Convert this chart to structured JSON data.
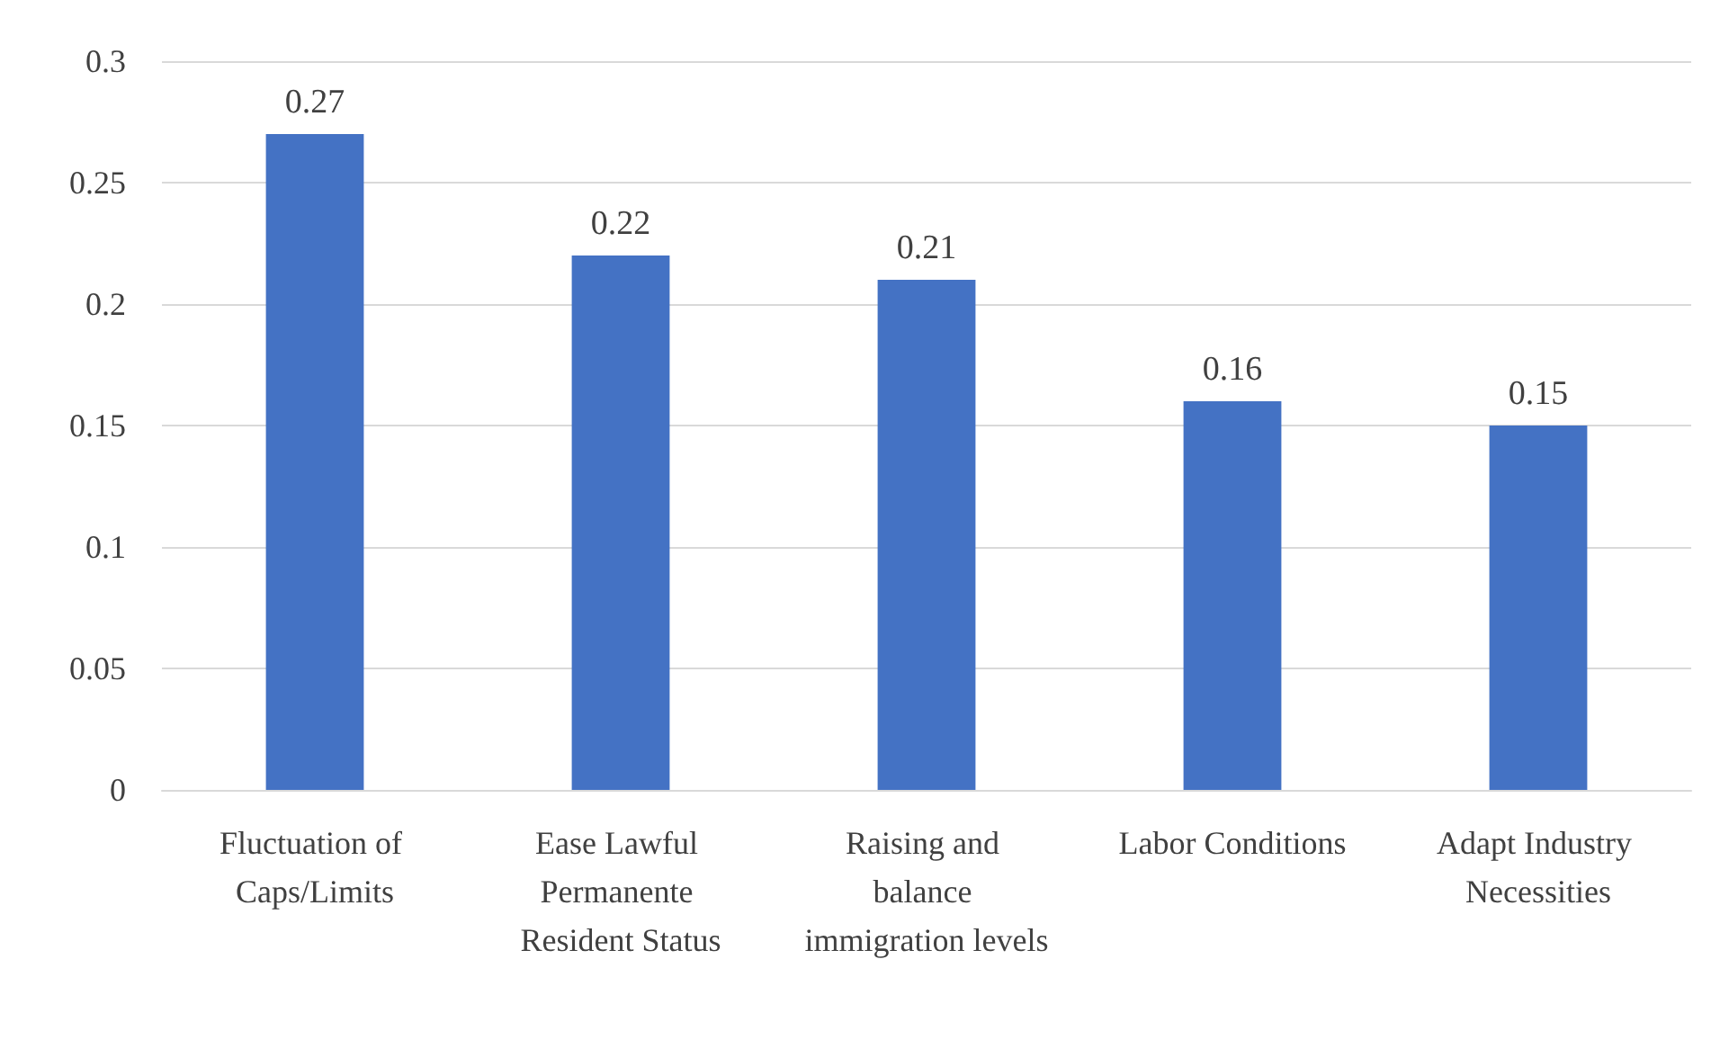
{
  "chart_data": {
    "type": "bar",
    "categories": [
      "Fluctuation of Caps/Limits",
      "Ease Lawful Permanente Resident Status",
      "Raising and balance immigration levels",
      "Labor Conditions",
      "Adapt Industry Necessities"
    ],
    "values": [
      0.27,
      0.22,
      0.21,
      0.16,
      0.15
    ],
    "color": "#4472c4",
    "ylim": [
      0,
      0.3
    ],
    "yticks": [
      0,
      0.05,
      0.1,
      0.15,
      0.2,
      0.25,
      0.3
    ],
    "grid": "y",
    "data_labels": true
  }
}
